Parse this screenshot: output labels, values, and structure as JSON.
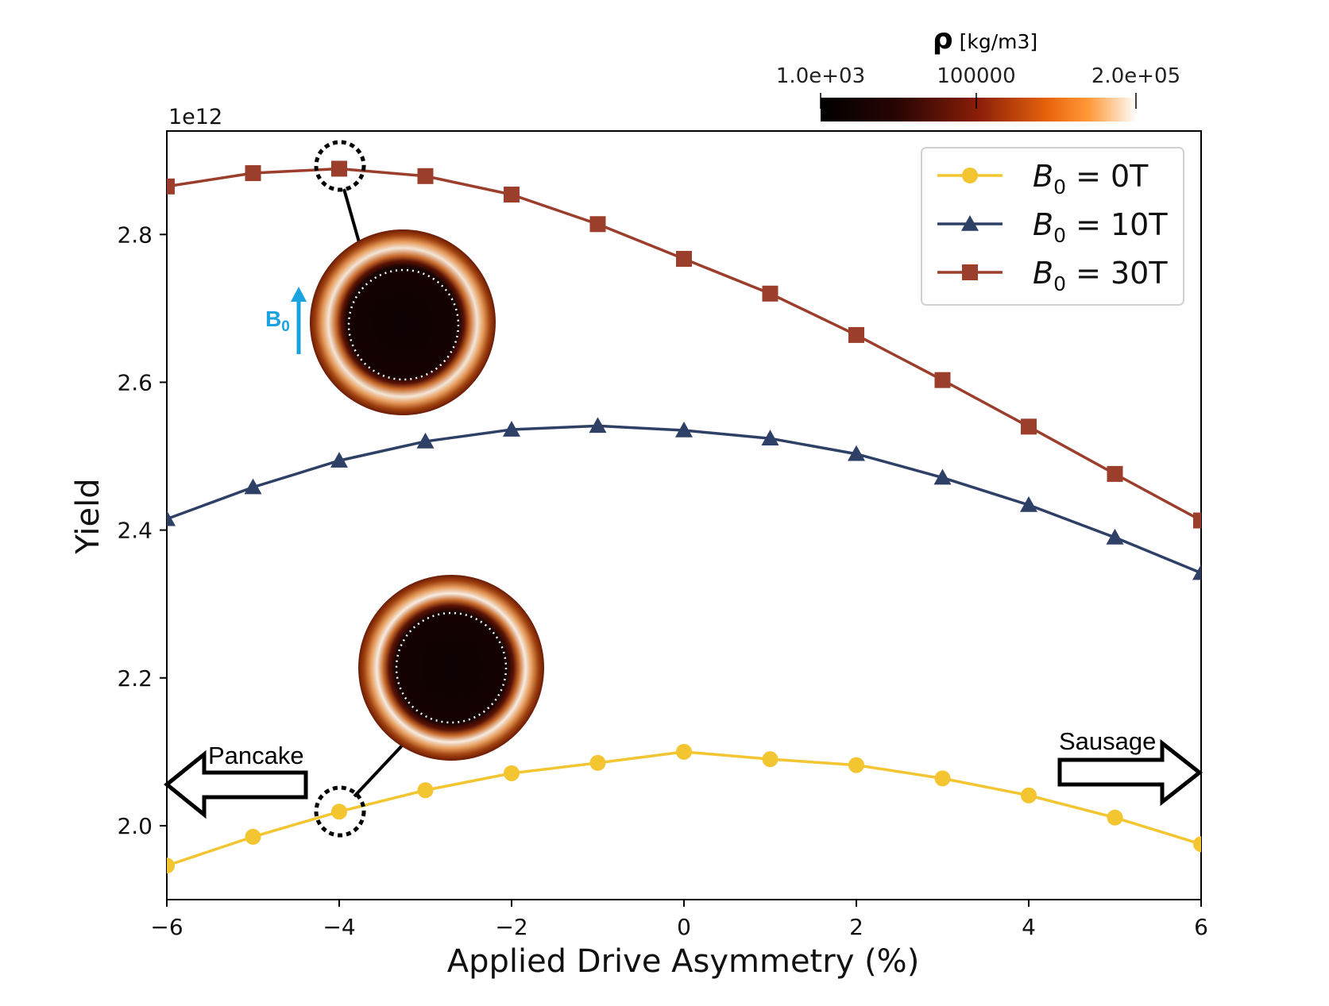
{
  "chart_data": {
    "type": "line",
    "xlabel": "Applied Drive Asymmetry (%)",
    "ylabel": "Yield",
    "y_offset_label": "1e12",
    "xlim": [
      -6,
      6
    ],
    "ylim": [
      1.9,
      2.94
    ],
    "x_ticks": [
      "−6",
      "−4",
      "−2",
      "0",
      "2",
      "4",
      "6"
    ],
    "y_ticks": [
      "2.0",
      "2.2",
      "2.4",
      "2.6",
      "2.8"
    ],
    "x": [
      -6,
      -5,
      -4,
      -3,
      -2,
      -1,
      0,
      1,
      2,
      3,
      4,
      5,
      6
    ],
    "series": [
      {
        "name": "B0 = 0T",
        "label_main": "B",
        "label_sub": "0",
        "label_rest": " = 0T",
        "color": "#f2c531",
        "marker": "circle",
        "values": [
          1.946,
          1.985,
          2.019,
          2.048,
          2.071,
          2.085,
          2.1,
          2.09,
          2.082,
          2.064,
          2.041,
          2.011,
          1.975
        ]
      },
      {
        "name": "B0 = 10T",
        "label_main": "B",
        "label_sub": "0",
        "label_rest": " = 10T",
        "color": "#2f4066",
        "marker": "triangle",
        "values": [
          2.415,
          2.458,
          2.494,
          2.52,
          2.536,
          2.541,
          2.535,
          2.524,
          2.503,
          2.471,
          2.434,
          2.39,
          2.342
        ]
      },
      {
        "name": "B0 = 30T",
        "label_main": "B",
        "label_sub": "0",
        "label_rest": " = 30T",
        "color": "#9b3e2c",
        "marker": "square",
        "values": [
          2.865,
          2.883,
          2.889,
          2.879,
          2.854,
          2.814,
          2.767,
          2.72,
          2.664,
          2.603,
          2.54,
          2.476,
          2.413
        ]
      }
    ],
    "legend_position": "top-right",
    "grid": false,
    "colorbar": {
      "title_symbol": "ρ",
      "title_unit": " [kg/m3]",
      "tick_labels": [
        "1.0e+03",
        "100000",
        "2.0e+05"
      ],
      "colors": [
        "#000000",
        "#3a0806",
        "#8c1f08",
        "#e0600c",
        "#ff8a1c",
        "#ffffff"
      ]
    },
    "annotations": {
      "left_arrow_label": "Pancake",
      "right_arrow_label": "Sausage",
      "field_label_main": "B",
      "field_label_sub": "0",
      "field_color": "#1aa3e0",
      "highlighted_points": [
        {
          "series": "B0 = 30T",
          "x": -4
        },
        {
          "series": "B0 = 0T",
          "x": -4
        }
      ]
    }
  }
}
